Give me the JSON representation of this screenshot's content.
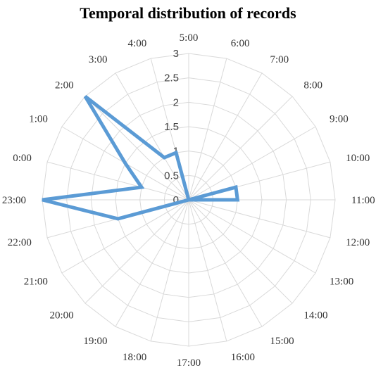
{
  "chart_data": {
    "type": "radar",
    "title": "Temporal distribution of records",
    "categories": [
      "5:00",
      "6:00",
      "7:00",
      "8:00",
      "9:00",
      "10:00",
      "11:00",
      "12:00",
      "13:00",
      "14:00",
      "15:00",
      "16:00",
      "17:00",
      "18:00",
      "19:00",
      "20:00",
      "21:00",
      "22:00",
      "23:00",
      "0:00",
      "1:00",
      "2:00",
      "3:00",
      "4:00"
    ],
    "r_ticks": [
      "0",
      "0.5",
      "1",
      "1.5",
      "2",
      "2.5",
      "3"
    ],
    "rlim": [
      0,
      3
    ],
    "grid": true,
    "series": [
      {
        "color": "#5B9BD5",
        "values": [
          0,
          0,
          0,
          0,
          0,
          1,
          1,
          0,
          0,
          0,
          0,
          0,
          0,
          0,
          0,
          0,
          0,
          1.5,
          3,
          1,
          1.5,
          3,
          1,
          1
        ]
      }
    ]
  }
}
